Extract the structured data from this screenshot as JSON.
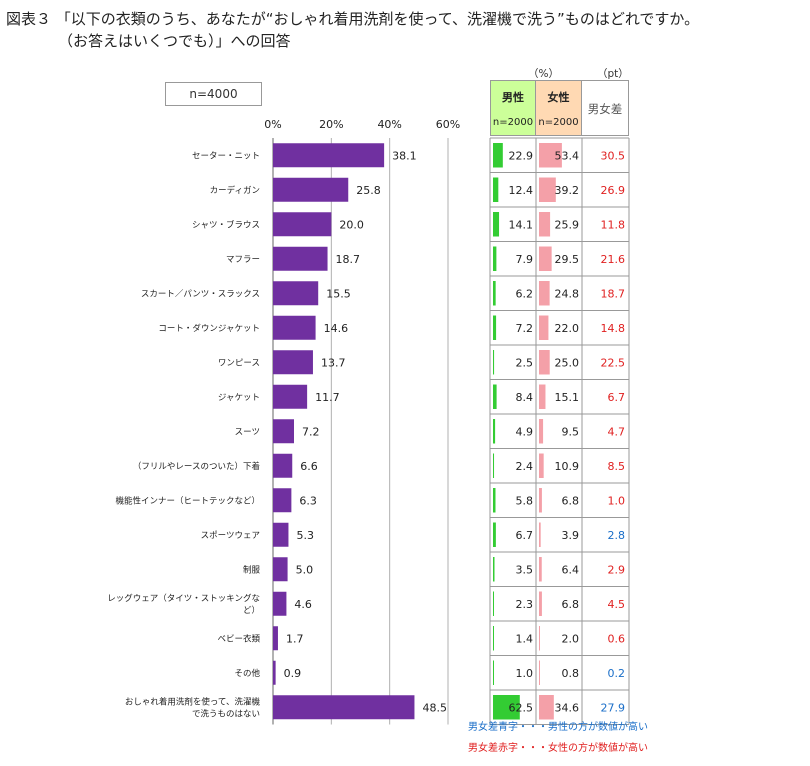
{
  "title_line1": "図表３ 「以下の衣類のうち、あなたが“おしゃれ着用洗剤を使って、洗濯機で洗う”ものはどれですか。",
  "title_line2": "（お答えはいくつでも）」への回答",
  "sample_label": "n=4000",
  "unit_percent": "（%）",
  "unit_pt": "（pt）",
  "male_header": "男性",
  "male_n": "n=2000",
  "female_header": "女性",
  "female_n": "n=2000",
  "diff_header": "男女差",
  "note_blue": "男女差青字・・・男性の方が数値が高い",
  "note_red": "男女差赤字・・・女性の方が数値が高い",
  "colors": {
    "bar": "#7030a0",
    "male_bar": "#33cc33",
    "female_bar": "#f4a0a8",
    "diff_red": "#e02020",
    "diff_blue": "#1a6ec8",
    "male_header_bg": "#ccff99",
    "female_header_bg": "#ffd9b3"
  },
  "chart_data": {
    "type": "bar",
    "orientation": "horizontal",
    "xlim": [
      0,
      60
    ],
    "ticks": [
      "0%",
      "20%",
      "40%",
      "60%"
    ],
    "grid": true,
    "categories": [
      "セーター・ニット",
      "カーディガン",
      "シャツ・ブラウス",
      "マフラー",
      "スカート／パンツ・スラックス",
      "コート・ダウンジャケット",
      "ワンピース",
      "ジャケット",
      "スーツ",
      "（フリルやレースのついた）下着",
      "機能性インナー（ヒートテックなど）",
      "スポーツウェア",
      "制服",
      "レッグウェア（タイツ・ストッキングなど）",
      "ベビー衣類",
      "その他",
      "おしゃれ着用洗剤を使って、洗濯機で洗うものはない"
    ],
    "category_lines": [
      [
        "セーター・ニット"
      ],
      [
        "カーディガン"
      ],
      [
        "シャツ・ブラウス"
      ],
      [
        "マフラー"
      ],
      [
        "スカート／パンツ・スラックス"
      ],
      [
        "コート・ダウンジャケット"
      ],
      [
        "ワンピース"
      ],
      [
        "ジャケット"
      ],
      [
        "スーツ"
      ],
      [
        "（フリルやレースのついた）下着"
      ],
      [
        "機能性インナー（ヒートテックなど）"
      ],
      [
        "スポーツウェア"
      ],
      [
        "制服"
      ],
      [
        "レッグウェア（タイツ・ストッキングな",
        "ど）"
      ],
      [
        "ベビー衣類"
      ],
      [
        "その他"
      ],
      [
        "おしゃれ着用洗剤を使って、洗濯機",
        "で洗うものはない"
      ]
    ],
    "values": [
      38.1,
      25.8,
      20.0,
      18.7,
      15.5,
      14.6,
      13.7,
      11.7,
      7.2,
      6.6,
      6.3,
      5.3,
      5.0,
      4.6,
      1.7,
      0.9,
      48.5
    ],
    "value_labels": [
      "38.1",
      "25.8",
      "20.0",
      "18.7",
      "15.5",
      "14.6",
      "13.7",
      "11.7",
      "7.2",
      "6.6",
      "6.3",
      "5.3",
      "5.0",
      "4.6",
      "1.7",
      "0.9",
      "48.5"
    ],
    "table": {
      "male": [
        22.9,
        12.4,
        14.1,
        7.9,
        6.2,
        7.2,
        2.5,
        8.4,
        4.9,
        2.4,
        5.8,
        6.7,
        3.5,
        2.3,
        1.4,
        1.0,
        62.5
      ],
      "male_labels": [
        "22.9",
        "12.4",
        "14.1",
        "7.9",
        "6.2",
        "7.2",
        "2.5",
        "8.4",
        "4.9",
        "2.4",
        "5.8",
        "6.7",
        "3.5",
        "2.3",
        "1.4",
        "1.0",
        "62.5"
      ],
      "female": [
        53.4,
        39.2,
        25.9,
        29.5,
        24.8,
        22.0,
        25.0,
        15.1,
        9.5,
        10.9,
        6.8,
        3.9,
        6.4,
        6.8,
        2.0,
        0.8,
        34.6
      ],
      "female_labels": [
        "53.4",
        "39.2",
        "25.9",
        "29.5",
        "24.8",
        "22.0",
        "25.0",
        "15.1",
        "9.5",
        "10.9",
        "6.8",
        "3.9",
        "6.4",
        "6.8",
        "2.0",
        "0.8",
        "34.6"
      ],
      "diff": [
        30.5,
        26.9,
        11.8,
        21.6,
        18.7,
        14.8,
        22.5,
        6.7,
        4.7,
        8.5,
        1.0,
        2.8,
        2.9,
        4.5,
        0.6,
        0.2,
        27.9
      ],
      "diff_labels": [
        "30.5",
        "26.9",
        "11.8",
        "21.6",
        "18.7",
        "14.8",
        "22.5",
        "6.7",
        "4.7",
        "8.5",
        "1.0",
        "2.8",
        "2.9",
        "4.5",
        "0.6",
        "0.2",
        "27.9"
      ],
      "diff_higher": [
        "female",
        "female",
        "female",
        "female",
        "female",
        "female",
        "female",
        "female",
        "female",
        "female",
        "female",
        "male",
        "female",
        "female",
        "female",
        "male",
        "male"
      ]
    }
  }
}
